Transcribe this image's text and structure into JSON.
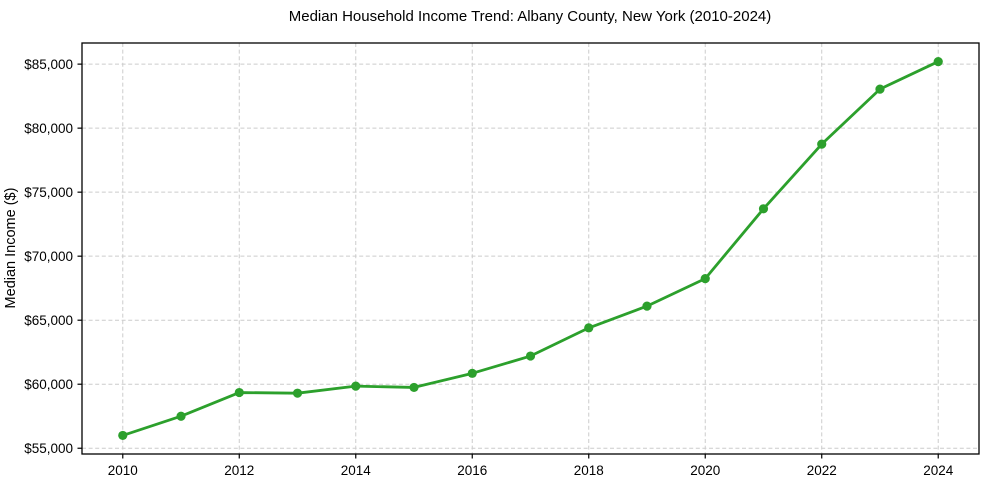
{
  "chart_data": {
    "type": "line",
    "title": "Median Household Income Trend: Albany County, New York (2010-2024)",
    "xlabel": "",
    "ylabel": "Median Income ($)",
    "series": [
      {
        "name": "Median Household Income",
        "x": [
          2010,
          2011,
          2012,
          2013,
          2014,
          2015,
          2016,
          2017,
          2018,
          2019,
          2020,
          2021,
          2022,
          2023,
          2024
        ],
        "values": [
          56000,
          57500,
          59350,
          59300,
          59850,
          59750,
          60850,
          62200,
          64400,
          66100,
          68250,
          73700,
          78750,
          83050,
          85200
        ],
        "line_color": "#2ca02c",
        "marker": "circle"
      }
    ],
    "xlim": [
      2009.3,
      2024.7
    ],
    "ylim": [
      54550,
      86650
    ],
    "x_ticks": [
      2010,
      2012,
      2014,
      2016,
      2018,
      2020,
      2022,
      2024
    ],
    "x_tick_labels": [
      "2010",
      "2012",
      "2014",
      "2016",
      "2018",
      "2020",
      "2022",
      "2024"
    ],
    "y_ticks": [
      55000,
      60000,
      65000,
      70000,
      75000,
      80000,
      85000
    ],
    "y_tick_labels": [
      "$55,000",
      "$60,000",
      "$65,000",
      "$70,000",
      "$75,000",
      "$80,000",
      "$85,000"
    ],
    "grid": "dashed",
    "grid_color": "#cccccc",
    "spine_color": "#000000",
    "background_color": "#ffffff",
    "legend": "none"
  }
}
